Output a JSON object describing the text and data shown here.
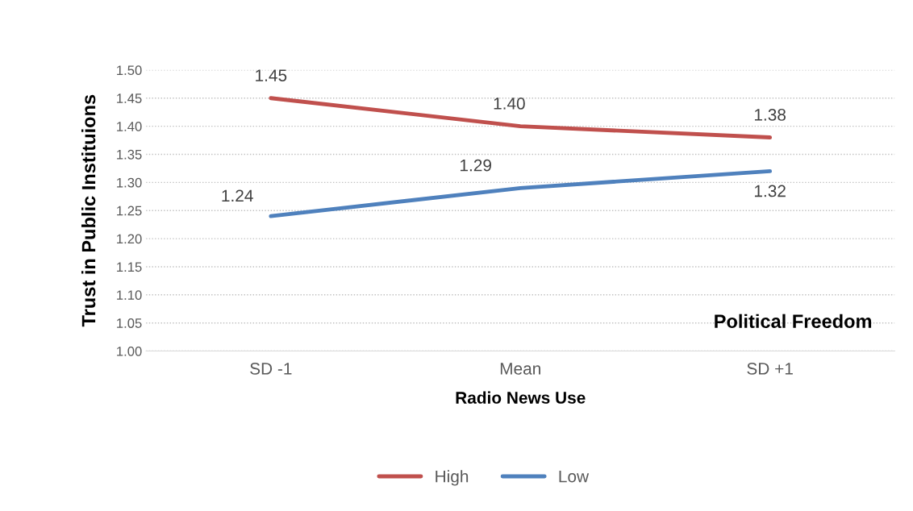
{
  "chart_data": {
    "type": "line",
    "xlabel": "Radio News Use",
    "ylabel": "Trust in Public Instituions",
    "categories": [
      "SD -1",
      "Mean",
      "SD +1"
    ],
    "series": [
      {
        "name": "High",
        "color": "#c0504d",
        "values": [
          1.45,
          1.4,
          1.38
        ],
        "value_labels": [
          "1.45",
          "1.40",
          "1.38"
        ]
      },
      {
        "name": "Low",
        "color": "#4f81bd",
        "values": [
          1.24,
          1.29,
          1.32
        ],
        "value_labels": [
          "1.24",
          "1.29",
          "1.32"
        ]
      }
    ],
    "ylim": [
      1.0,
      1.5
    ],
    "yticks": [
      {
        "value": 1.0,
        "label": "1.00"
      },
      {
        "value": 1.05,
        "label": "1.05"
      },
      {
        "value": 1.1,
        "label": "1.10"
      },
      {
        "value": 1.15,
        "label": "1.15"
      },
      {
        "value": 1.2,
        "label": "1.20"
      },
      {
        "value": 1.25,
        "label": "1.25"
      },
      {
        "value": 1.3,
        "label": "1.30"
      },
      {
        "value": 1.35,
        "label": "1.35"
      },
      {
        "value": 1.4,
        "label": "1.40"
      },
      {
        "value": 1.45,
        "label": "1.45"
      },
      {
        "value": 1.5,
        "label": "1.50"
      }
    ],
    "grid": "y",
    "legend": "bottom",
    "marker": "none",
    "line_style": "solid",
    "annotations": [
      "Political Freedom"
    ]
  }
}
